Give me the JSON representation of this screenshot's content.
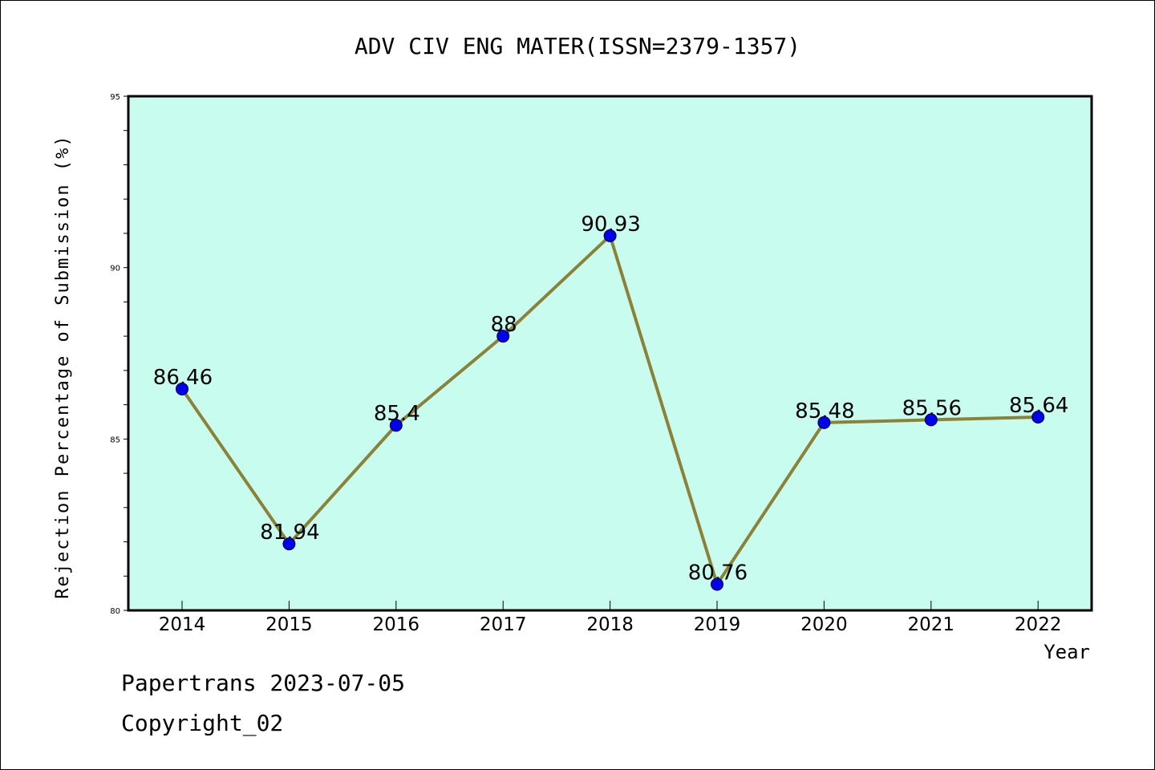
{
  "chart_data": {
    "type": "line",
    "title": "ADV CIV ENG MATER(ISSN=2379-1357)",
    "xlabel": "Year",
    "ylabel": "Rejection Percentage of Submission (%)",
    "categories": [
      "2014",
      "2015",
      "2016",
      "2017",
      "2018",
      "2019",
      "2020",
      "2021",
      "2022"
    ],
    "values": [
      86.46,
      81.94,
      85.4,
      88,
      90.93,
      80.76,
      85.48,
      85.56,
      85.64
    ],
    "data_labels": [
      "86.46",
      "81.94",
      "85.4",
      "88",
      "90.93",
      "80.76",
      "85.48",
      "85.56",
      "85.64"
    ],
    "ylim": [
      80,
      95
    ],
    "yticks": [
      "80",
      "85",
      "90",
      "95"
    ],
    "grid": false,
    "colors": {
      "plot_background": "#c8fcee",
      "line": "#8b8237",
      "marker": "#0000ee"
    }
  },
  "footer": {
    "line1": "Papertrans 2023-07-05",
    "line2": "Copyright_02"
  }
}
